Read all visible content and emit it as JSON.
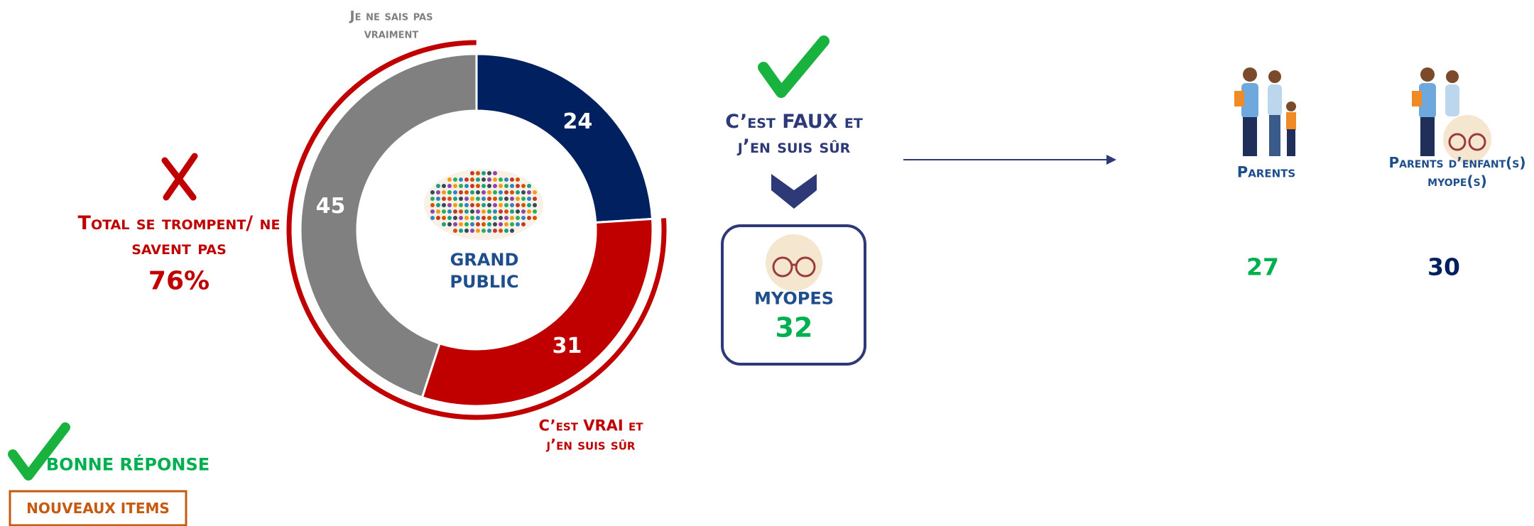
{
  "chart_data": {
    "type": "donut",
    "center_label": "GRAND PUBLIC",
    "categories": [
      "C’est FAUX et j’en suis sûr",
      "C’est VRAI et j’en suis sûr",
      "Je ne sais pas vraiment"
    ],
    "values": [
      24,
      31,
      45
    ],
    "colors": [
      "#002060",
      "#c00000",
      "#808080"
    ],
    "total": {
      "label": "Total se trompent/ ne savent pas",
      "value": 76,
      "value_label": "76%",
      "color": "#c00000"
    }
  },
  "myopes": {
    "label": "MYOPES",
    "value": 32
  },
  "parents": [
    {
      "label": "Parents",
      "value": 27
    },
    {
      "label": "Parents d’enfant(s) myope(s)",
      "value": 30
    }
  ],
  "legend": {
    "correct": "BONNE RÉPONSE",
    "new_items": "NOUVEAUX ITEMS"
  }
}
